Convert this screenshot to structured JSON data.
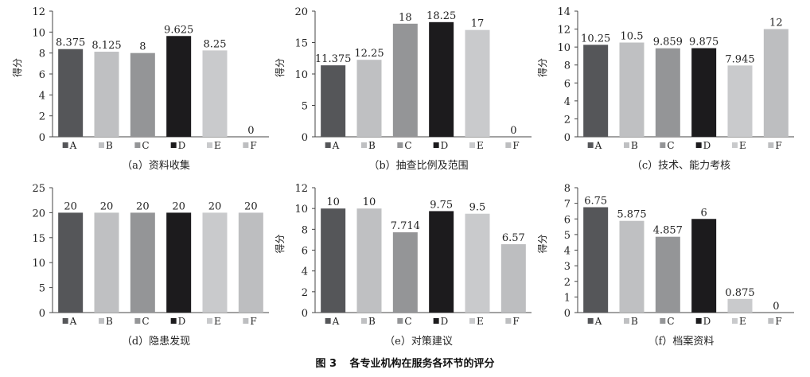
{
  "figure_caption": {
    "number": "图 3",
    "title": "各专业机构在服务各环节的评分"
  },
  "colors": {
    "A": "#555659",
    "B": "#bfc0c2",
    "C": "#949597",
    "D": "#1c1b1d",
    "E": "#c9cacc",
    "F": "#bdbec0"
  },
  "chart_data": [
    {
      "type": "bar",
      "caption": "（a）资料收集",
      "ylabel": "得分",
      "ylim": [
        0,
        12
      ],
      "yticks": [
        "0",
        "2",
        "4",
        "6",
        "8",
        "10",
        "12"
      ],
      "categories": [
        "A",
        "B",
        "C",
        "D",
        "E",
        "F"
      ],
      "values": [
        8.375,
        8.125,
        8,
        9.625,
        8.25,
        0
      ],
      "labels": [
        "8.375",
        "8.125",
        "8",
        "9.625",
        "8.25",
        "0"
      ]
    },
    {
      "type": "bar",
      "caption": "（b）抽查比例及范围",
      "ylabel": "得分",
      "ylim": [
        0,
        20
      ],
      "yticks": [
        "0",
        "5",
        "10",
        "15",
        "20"
      ],
      "categories": [
        "A",
        "B",
        "C",
        "D",
        "E",
        "F"
      ],
      "values": [
        11.375,
        12.25,
        18,
        18.25,
        17,
        0
      ],
      "labels": [
        "11.375",
        "12.25",
        "18",
        "18.25",
        "17",
        "0"
      ]
    },
    {
      "type": "bar",
      "caption": "（c）技术、能力考核",
      "ylabel": "得分",
      "ylim": [
        0,
        14
      ],
      "yticks": [
        "0",
        "2",
        "4",
        "6",
        "8",
        "10",
        "12",
        "14"
      ],
      "categories": [
        "A",
        "B",
        "C",
        "D",
        "E",
        "F"
      ],
      "values": [
        10.25,
        10.5,
        9.859,
        9.875,
        7.945,
        12
      ],
      "labels": [
        "10.25",
        "10.5",
        "9.859",
        "9.875",
        "7.945",
        "12"
      ]
    },
    {
      "type": "bar",
      "caption": "（d）隐患发现",
      "ylabel": "",
      "ylim": [
        0,
        25
      ],
      "yticks": [
        "0",
        "5",
        "10",
        "15",
        "20",
        "25"
      ],
      "categories": [
        "A",
        "B",
        "C",
        "D",
        "E",
        "F"
      ],
      "values": [
        20,
        20,
        20,
        20,
        20,
        20
      ],
      "labels": [
        "20",
        "20",
        "20",
        "20",
        "20",
        "20"
      ]
    },
    {
      "type": "bar",
      "caption": "（e）对策建议",
      "ylabel": "得分",
      "ylim": [
        0,
        12
      ],
      "yticks": [
        "0",
        "2",
        "4",
        "6",
        "8",
        "10",
        "12"
      ],
      "categories": [
        "A",
        "B",
        "C",
        "D",
        "E",
        "F"
      ],
      "values": [
        10,
        10,
        7.714,
        9.75,
        9.5,
        6.57
      ],
      "labels": [
        "10",
        "10",
        "7.714",
        "9.75",
        "9.5",
        "6.57"
      ]
    },
    {
      "type": "bar",
      "caption": "（f）档案资料",
      "ylabel": "得分",
      "ylim": [
        0,
        8
      ],
      "yticks": [
        "0",
        "1",
        "2",
        "3",
        "4",
        "5",
        "6",
        "7",
        "8"
      ],
      "categories": [
        "A",
        "B",
        "C",
        "D",
        "E",
        "F"
      ],
      "values": [
        6.75,
        5.875,
        4.857,
        6,
        0.875,
        0
      ],
      "labels": [
        "6.75",
        "5.875",
        "4.857",
        "6",
        "0.875",
        "0"
      ]
    }
  ]
}
